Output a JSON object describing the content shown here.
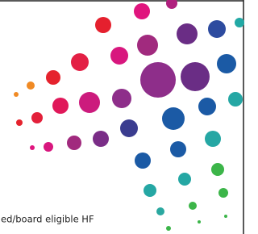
{
  "text": "ed/board eligible HF"
}
